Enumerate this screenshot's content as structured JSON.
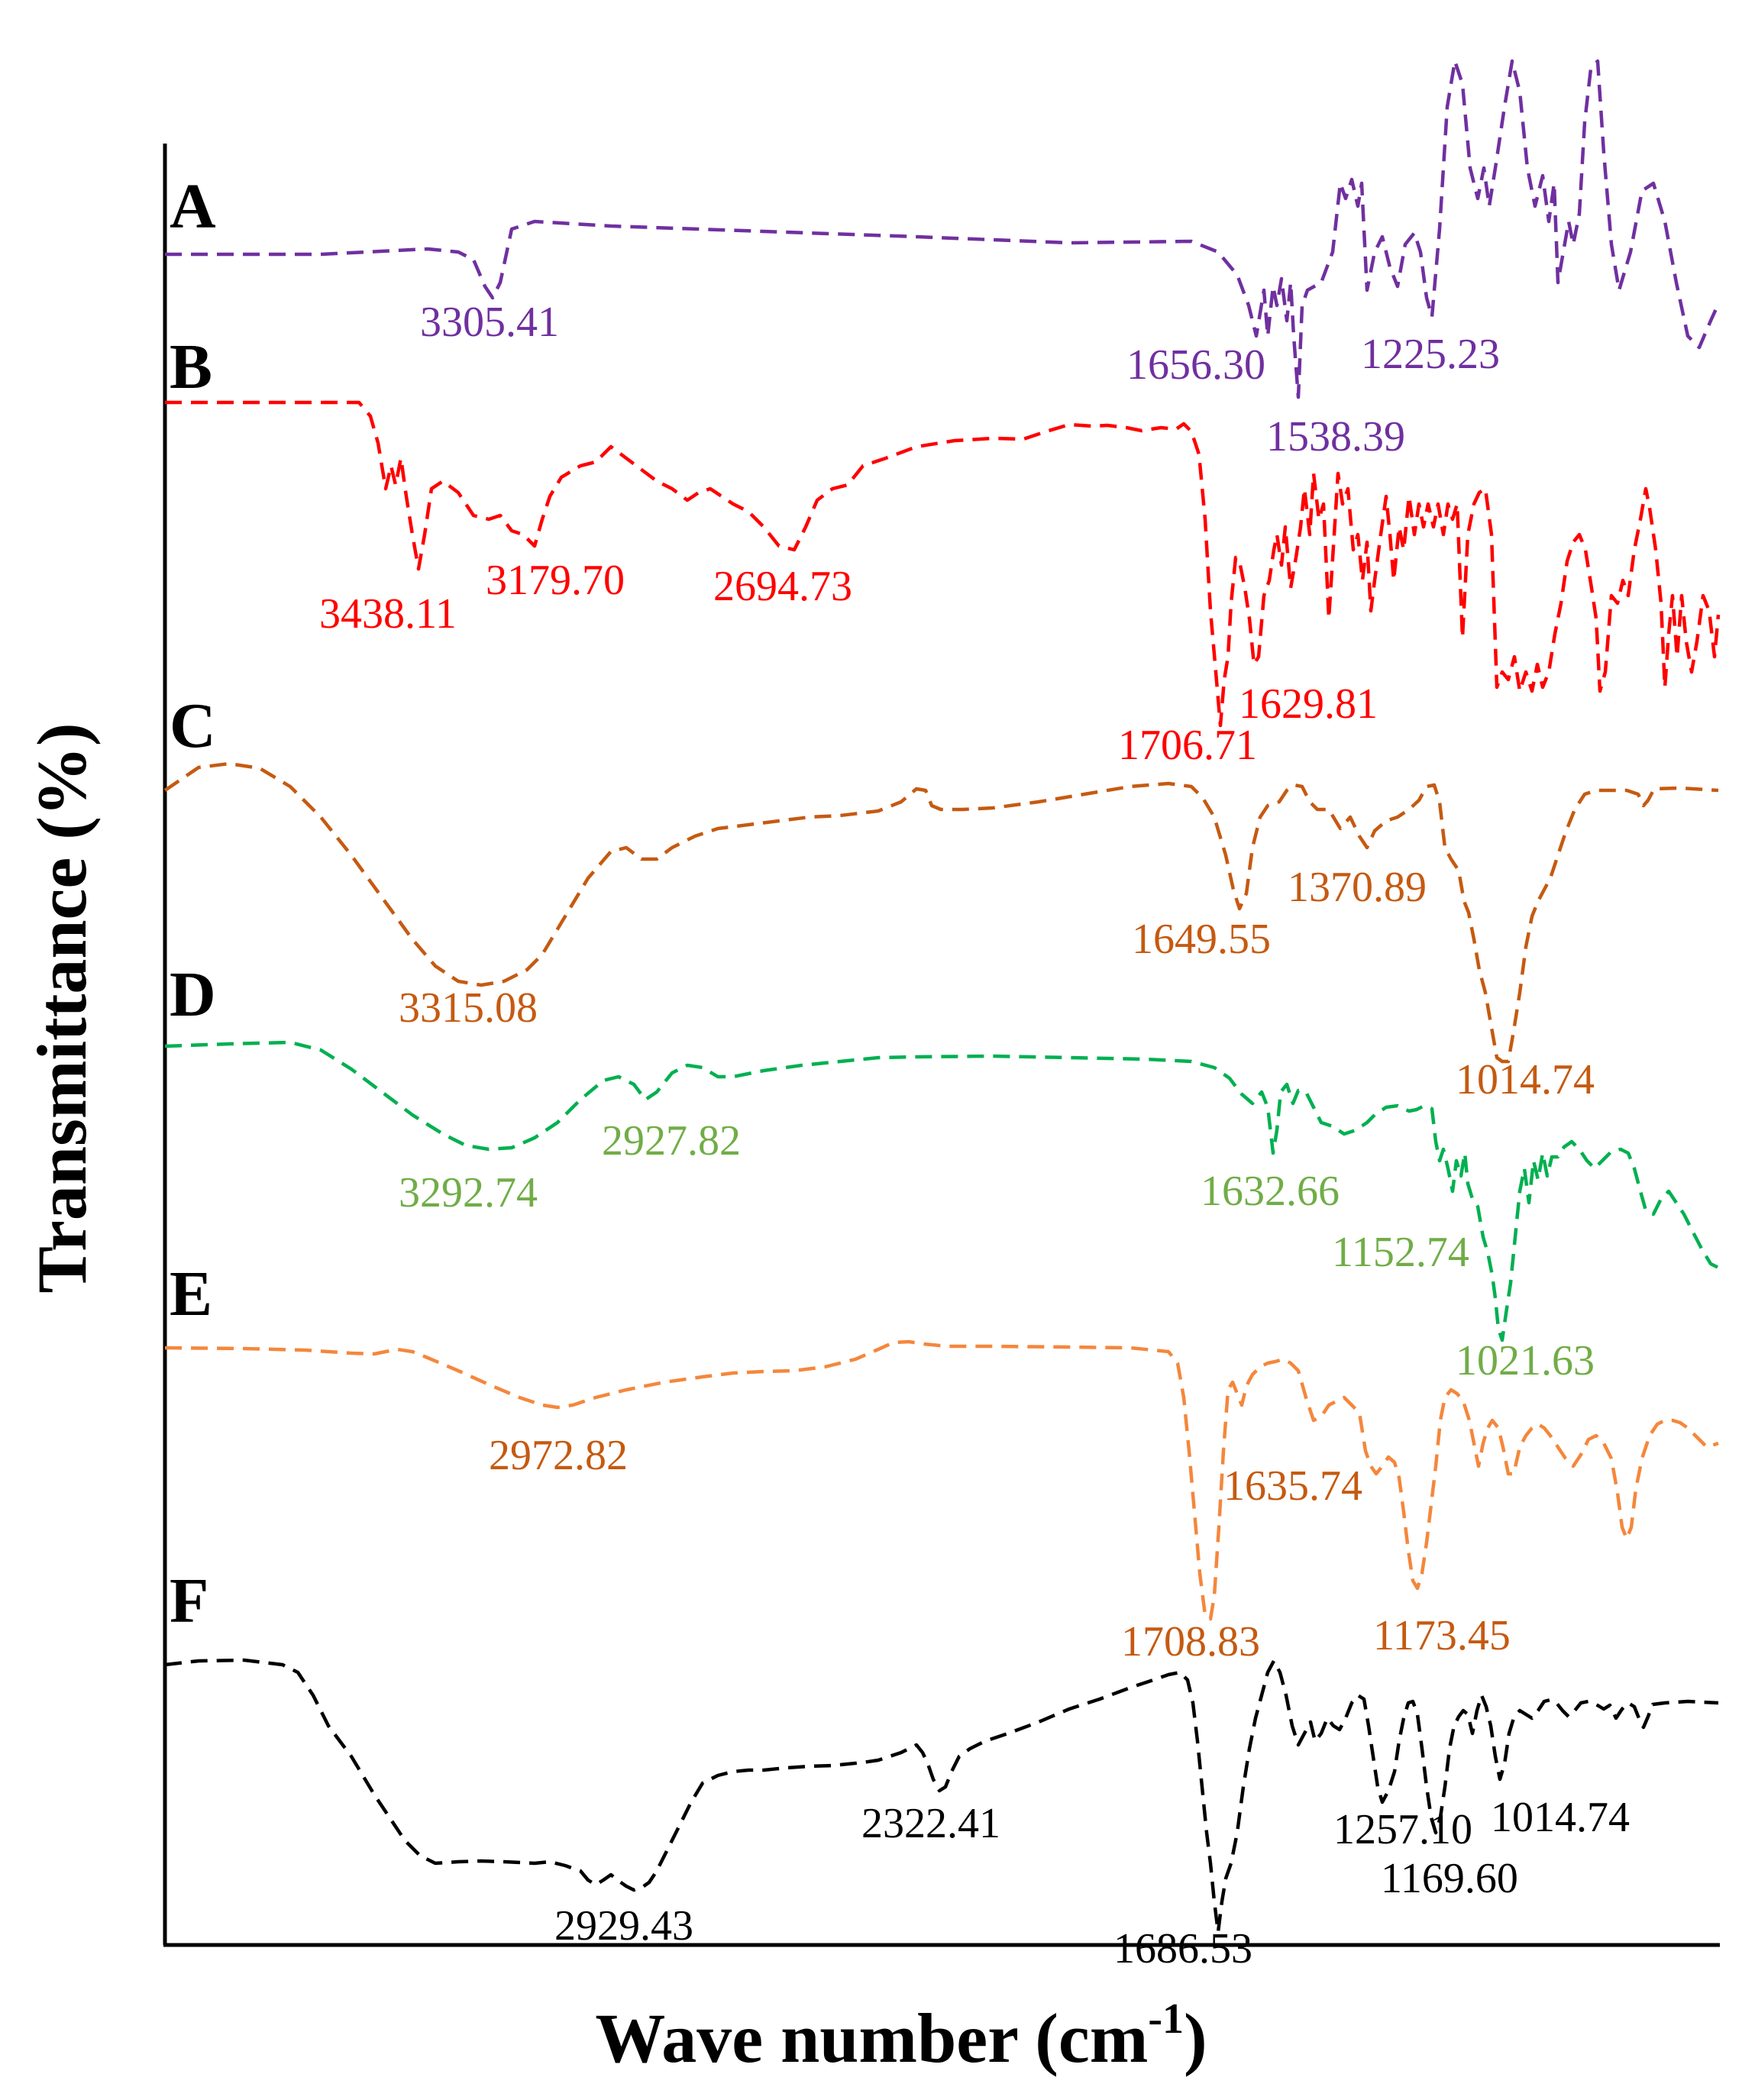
{
  "chart_data": {
    "type": "line",
    "title": "",
    "xlabel": "Wave number (cm",
    "xlabel_sup": "-1",
    "xlabel_close": ")",
    "ylabel": "Transmittance (%)",
    "xlim": [
      4000,
      400
    ],
    "grid": false,
    "legend": "none",
    "series": [
      {
        "name": "A",
        "color": "#7030a0",
        "peaks": [
          {
            "label": "3305.41",
            "x": 3305.41
          },
          {
            "label": "1656.30",
            "x": 1656.3
          },
          {
            "label": "1538.39",
            "x": 1538.39
          },
          {
            "label": "1225.23",
            "x": 1225.23
          }
        ]
      },
      {
        "name": "B",
        "color": "#ff0000",
        "peaks": [
          {
            "label": "3438.11",
            "x": 3438.11
          },
          {
            "label": "3179.70",
            "x": 3179.7
          },
          {
            "label": "2694.73",
            "x": 2694.73
          },
          {
            "label": "1706.71",
            "x": 1706.71
          },
          {
            "label": "1629.81",
            "x": 1629.81
          }
        ]
      },
      {
        "name": "C",
        "color": "#c55a11",
        "peaks": [
          {
            "label": "3315.08",
            "x": 3315.08
          },
          {
            "label": "1649.55",
            "x": 1649.55
          },
          {
            "label": "1370.89",
            "x": 1370.89
          },
          {
            "label": "1014.74",
            "x": 1014.74
          }
        ]
      },
      {
        "name": "D",
        "color": "#00b050",
        "label_color": "#70ad47",
        "peaks": [
          {
            "label": "3292.74",
            "x": 3292.74
          },
          {
            "label": "2927.82",
            "x": 2927.82
          },
          {
            "label": "1632.66",
            "x": 1632.66
          },
          {
            "label": "1152.74",
            "x": 1152.74
          },
          {
            "label": "1021.63",
            "x": 1021.63
          }
        ]
      },
      {
        "name": "E",
        "color": "#f4873c",
        "label_color": "#c55a11",
        "peaks": [
          {
            "label": "2972.82",
            "x": 2972.82
          },
          {
            "label": "1635.74",
            "x": 1635.74
          },
          {
            "label": "1708.83",
            "x": 1708.83
          },
          {
            "label": "1173.45",
            "x": 1173.45
          }
        ]
      },
      {
        "name": "F",
        "color": "#000000",
        "peaks": [
          {
            "label": "2929.43",
            "x": 2929.43
          },
          {
            "label": "2322.41",
            "x": 2322.41
          },
          {
            "label": "1686.53",
            "x": 1686.53
          },
          {
            "label": "1257.10",
            "x": 1257.1
          },
          {
            "label": "1169.60",
            "x": 1169.6
          },
          {
            "label": "1014.74",
            "x": 1014.74
          }
        ]
      }
    ]
  }
}
